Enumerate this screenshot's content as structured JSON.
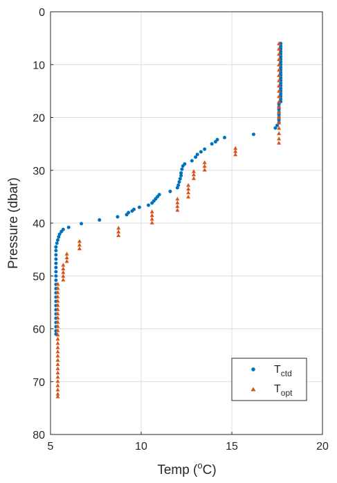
{
  "chart_data": {
    "type": "scatter",
    "xlabel": {
      "main": "Temp (",
      "sup": "o",
      "tail": "C)"
    },
    "ylabel": "Pressure (dbar)",
    "xlim": [
      5,
      20
    ],
    "ylim": [
      0,
      80
    ],
    "y_reversed": true,
    "grid": true,
    "legend_position": "bottom-right",
    "xticks": [
      "5",
      "10",
      "15",
      "20"
    ],
    "yticks": [
      "0",
      "10",
      "20",
      "30",
      "40",
      "50",
      "60",
      "70",
      "80"
    ],
    "series": [
      {
        "name": "T",
        "name_sub": "ctd",
        "color": "#0072BD",
        "marker": "circle",
        "points": [
          [
            17.7,
            6
          ],
          [
            17.7,
            6.5
          ],
          [
            17.7,
            7
          ],
          [
            17.7,
            7.5
          ],
          [
            17.7,
            8
          ],
          [
            17.7,
            8.5
          ],
          [
            17.7,
            9
          ],
          [
            17.7,
            9.5
          ],
          [
            17.7,
            10
          ],
          [
            17.7,
            10.5
          ],
          [
            17.7,
            11
          ],
          [
            17.7,
            11.5
          ],
          [
            17.7,
            12
          ],
          [
            17.7,
            12.5
          ],
          [
            17.7,
            13
          ],
          [
            17.7,
            13.5
          ],
          [
            17.7,
            14
          ],
          [
            17.7,
            14.5
          ],
          [
            17.7,
            15
          ],
          [
            17.7,
            15.5
          ],
          [
            17.7,
            16
          ],
          [
            17.7,
            16.5
          ],
          [
            17.7,
            17
          ],
          [
            17.6,
            17.5
          ],
          [
            17.6,
            18
          ],
          [
            17.6,
            18.5
          ],
          [
            17.6,
            19
          ],
          [
            17.6,
            19.5
          ],
          [
            17.6,
            20
          ],
          [
            17.6,
            20.5
          ],
          [
            17.6,
            21
          ],
          [
            17.5,
            21.5
          ],
          [
            17.4,
            22
          ],
          [
            16.2,
            23.2
          ],
          [
            14.6,
            23.8
          ],
          [
            14.2,
            24.2
          ],
          [
            14.1,
            24.6
          ],
          [
            13.9,
            25
          ],
          [
            13.5,
            26
          ],
          [
            13.3,
            26.5
          ],
          [
            13.1,
            27
          ],
          [
            13.0,
            27.5
          ],
          [
            12.8,
            28.2
          ],
          [
            12.4,
            28.8
          ],
          [
            12.3,
            29.2
          ],
          [
            12.25,
            29.8
          ],
          [
            12.2,
            30.5
          ],
          [
            12.2,
            31
          ],
          [
            12.15,
            31.6
          ],
          [
            12.1,
            32.2
          ],
          [
            12.05,
            32.8
          ],
          [
            12.0,
            33.3
          ],
          [
            11.6,
            34
          ],
          [
            11.0,
            34.6
          ],
          [
            10.9,
            35
          ],
          [
            10.8,
            35.4
          ],
          [
            10.7,
            35.8
          ],
          [
            10.6,
            36.2
          ],
          [
            10.4,
            36.6
          ],
          [
            9.9,
            37
          ],
          [
            9.6,
            37.4
          ],
          [
            9.5,
            37.7
          ],
          [
            9.3,
            38
          ],
          [
            9.2,
            38.4
          ],
          [
            8.7,
            38.8
          ],
          [
            7.7,
            39.4
          ],
          [
            6.7,
            40.1
          ],
          [
            6.0,
            40.8
          ],
          [
            5.7,
            41.2
          ],
          [
            5.6,
            41.6
          ],
          [
            5.5,
            42.1
          ],
          [
            5.45,
            42.6
          ],
          [
            5.4,
            43.2
          ],
          [
            5.35,
            43.8
          ],
          [
            5.3,
            44.5
          ],
          [
            5.3,
            45.2
          ],
          [
            5.3,
            46
          ],
          [
            5.3,
            46.8
          ],
          [
            5.3,
            47.6
          ],
          [
            5.3,
            48.4
          ],
          [
            5.3,
            49.2
          ],
          [
            5.3,
            50
          ],
          [
            5.3,
            50.8
          ],
          [
            5.3,
            51.6
          ],
          [
            5.3,
            52.4
          ],
          [
            5.3,
            53.2
          ],
          [
            5.3,
            54
          ],
          [
            5.3,
            54.8
          ],
          [
            5.3,
            55.6
          ],
          [
            5.3,
            56.4
          ],
          [
            5.3,
            57.2
          ],
          [
            5.3,
            58
          ],
          [
            5.3,
            58.8
          ],
          [
            5.3,
            59.6
          ],
          [
            5.3,
            60.4
          ],
          [
            5.3,
            61
          ]
        ]
      },
      {
        "name": "T",
        "name_sub": "opt",
        "color": "#D95319",
        "marker": "triangle",
        "points": [
          [
            17.6,
            6
          ],
          [
            17.6,
            7
          ],
          [
            17.6,
            8
          ],
          [
            17.6,
            9
          ],
          [
            17.6,
            10
          ],
          [
            17.6,
            11
          ],
          [
            17.6,
            12
          ],
          [
            17.6,
            13
          ],
          [
            17.6,
            14
          ],
          [
            17.6,
            15
          ],
          [
            17.6,
            16
          ],
          [
            17.6,
            17
          ],
          [
            17.6,
            18
          ],
          [
            17.6,
            19
          ],
          [
            17.6,
            20
          ],
          [
            17.6,
            21
          ],
          [
            17.6,
            22
          ],
          [
            17.6,
            23
          ],
          [
            17.6,
            24
          ],
          [
            17.6,
            24.8
          ],
          [
            15.2,
            25.8
          ],
          [
            15.2,
            26.4
          ],
          [
            15.2,
            27
          ],
          [
            13.5,
            28.5
          ],
          [
            13.5,
            29.2
          ],
          [
            13.5,
            29.9
          ],
          [
            12.9,
            30.2
          ],
          [
            12.9,
            30.8
          ],
          [
            12.9,
            31.5
          ],
          [
            12.6,
            32.8
          ],
          [
            12.6,
            33.5
          ],
          [
            12.6,
            34.2
          ],
          [
            12.6,
            35
          ],
          [
            12.0,
            35.4
          ],
          [
            12.0,
            36.1
          ],
          [
            12.0,
            36.8
          ],
          [
            12.0,
            37.5
          ],
          [
            10.6,
            37.8
          ],
          [
            10.6,
            38.5
          ],
          [
            10.6,
            39.2
          ],
          [
            10.6,
            39.9
          ],
          [
            8.75,
            40.9
          ],
          [
            8.75,
            41.6
          ],
          [
            8.75,
            42.3
          ],
          [
            6.6,
            43.4
          ],
          [
            6.6,
            44.1
          ],
          [
            6.6,
            44.8
          ],
          [
            5.9,
            45.8
          ],
          [
            5.9,
            46.5
          ],
          [
            5.9,
            47.2
          ],
          [
            5.7,
            47.9
          ],
          [
            5.7,
            48.6
          ],
          [
            5.7,
            49.3
          ],
          [
            5.7,
            50
          ],
          [
            5.7,
            50.7
          ],
          [
            5.4,
            51.5
          ],
          [
            5.4,
            52.3
          ],
          [
            5.4,
            53.1
          ],
          [
            5.4,
            53.9
          ],
          [
            5.4,
            54.7
          ],
          [
            5.4,
            55.5
          ],
          [
            5.4,
            56.3
          ],
          [
            5.4,
            57.1
          ],
          [
            5.4,
            57.9
          ],
          [
            5.4,
            58.7
          ],
          [
            5.4,
            59.5
          ],
          [
            5.4,
            60.3
          ],
          [
            5.4,
            61.1
          ],
          [
            5.4,
            61.9
          ],
          [
            5.4,
            62.7
          ],
          [
            5.4,
            63.5
          ],
          [
            5.4,
            64.3
          ],
          [
            5.4,
            65.1
          ],
          [
            5.4,
            65.9
          ],
          [
            5.4,
            66.7
          ],
          [
            5.4,
            67.5
          ],
          [
            5.4,
            68.3
          ],
          [
            5.4,
            69.1
          ],
          [
            5.4,
            69.9
          ],
          [
            5.4,
            70.7
          ],
          [
            5.4,
            71.5
          ],
          [
            5.4,
            72.3
          ],
          [
            5.4,
            72.8
          ]
        ]
      }
    ]
  }
}
